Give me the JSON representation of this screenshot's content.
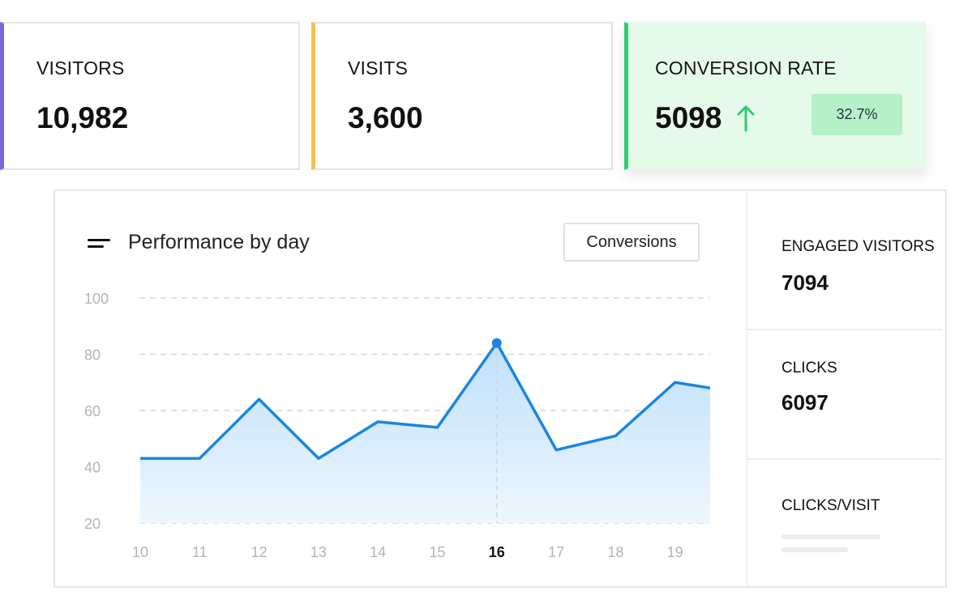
{
  "cards": {
    "visitors": {
      "label": "VISITORS",
      "value": "10,982",
      "accent": "#7b68d8"
    },
    "visits": {
      "label": "VISITS",
      "value": "3,600",
      "accent": "#f5c24c"
    },
    "conversion": {
      "label": "CONVERSION RATE",
      "value": "5098",
      "trend_icon": "arrow-up-icon",
      "badge": "32.7%",
      "accent": "#2ecc71"
    }
  },
  "chart_panel": {
    "title": "Performance by day",
    "title_icon": "menu-lines-icon",
    "button_label": "Conversions"
  },
  "chart_data": {
    "type": "area",
    "title": "Performance by day",
    "xlabel": "",
    "ylabel": "",
    "x": [
      "10",
      "11",
      "12",
      "13",
      "14",
      "15",
      "16",
      "17",
      "18",
      "19"
    ],
    "series": [
      {
        "values": [
          43,
          43,
          64,
          43,
          56,
          54,
          84,
          46,
          51,
          70
        ]
      }
    ],
    "last_value_partial": 68,
    "y_ticks": [
      "100",
      "80",
      "60",
      "40",
      "20"
    ],
    "ylim": [
      20,
      100
    ],
    "highlight_index": 6,
    "grid": true,
    "line_color": "#1a86e0"
  },
  "side_stats": {
    "engaged": {
      "label": "ENGAGED VISITORS",
      "value": "7094"
    },
    "clicks": {
      "label": "CLICKS",
      "value": "6097"
    },
    "clicks_per_visit": {
      "label": "CLICKS/VISIT"
    }
  }
}
